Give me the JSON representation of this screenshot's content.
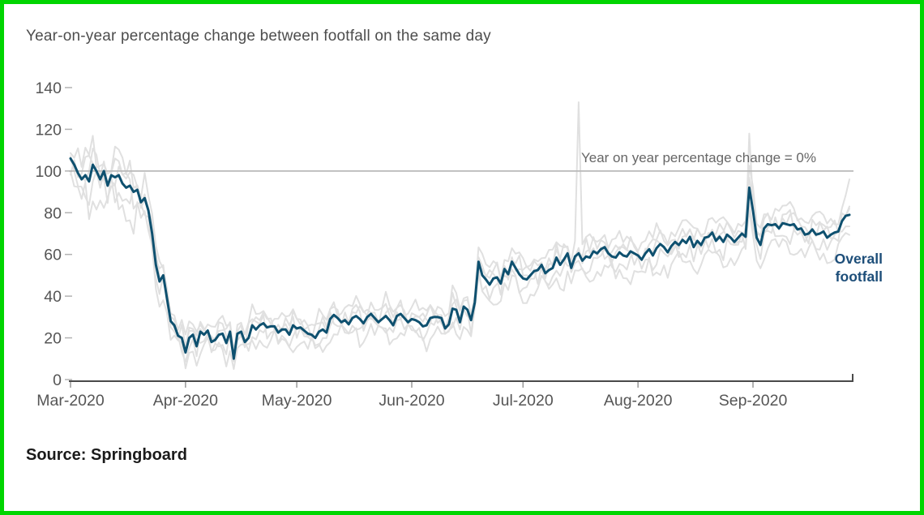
{
  "title": "Year-on-year percentage change between footfall on the same day",
  "source": "Source: Springboard",
  "colors": {
    "line_blue": "#0e506f",
    "label_blue": "#1d4e79",
    "background_grey": "#e0e0e0",
    "reference_grey": "#b9b9b9",
    "axis_grey": "#4a4a4a",
    "tick_grey": "#999999",
    "text_grey": "#555555",
    "source_dark": "#1a1a1a",
    "border_green": "#00d500"
  },
  "chart_data": {
    "type": "line",
    "title": "Year-on-year percentage change between footfall on the same day",
    "x_start_date": "2020-03-01",
    "x_tick_labels": [
      "Mar-2020",
      "Apr-2020",
      "May-2020",
      "Jun-2020",
      "Jul-2020",
      "Aug-2020",
      "Sep-2020"
    ],
    "x_tick_day_indices": [
      0,
      31,
      61,
      92,
      122,
      153,
      184
    ],
    "x_domain_days": 211,
    "ylim": [
      0,
      140
    ],
    "y_ticks": [
      0,
      20,
      40,
      60,
      80,
      100,
      120,
      140
    ],
    "grid": "off",
    "legend_position": "direct label at right end of line",
    "reference_line": {
      "value": 100,
      "label": "Year on year percentage change = 0%"
    },
    "series": [
      {
        "name": "Overall footfall",
        "color": "#0e506f",
        "label_lines": [
          "Overall",
          "footfall"
        ],
        "values": [
          106,
          103,
          99,
          96,
          98,
          95,
          103,
          100,
          96,
          100,
          93,
          98,
          97,
          98,
          94,
          92,
          93,
          90,
          91,
          85,
          87,
          81,
          70,
          55,
          47,
          50,
          39,
          28,
          26,
          21,
          20,
          13,
          20,
          21.5,
          16,
          23,
          21.5,
          23.5,
          18,
          19,
          21.5,
          22,
          17.5,
          23,
          10,
          22,
          23,
          18,
          20,
          26,
          24,
          26,
          27,
          25,
          25.5,
          25.5,
          22.5,
          24,
          24,
          21.5,
          26,
          24.5,
          25,
          23.5,
          22,
          21.5,
          20,
          23,
          24,
          22.5,
          29,
          31,
          29.5,
          27.5,
          28.5,
          26.5,
          29.5,
          30.5,
          29,
          27,
          30,
          31.5,
          29.5,
          27.5,
          29,
          30.5,
          28.5,
          26,
          30.5,
          31.5,
          29.5,
          27.5,
          29,
          28.5,
          27.5,
          25.5,
          26,
          29.5,
          30,
          30,
          29.5,
          24.5,
          26.5,
          34,
          33.5,
          27.5,
          35,
          33.5,
          28.5,
          37,
          56.5,
          50,
          48,
          45.5,
          48.5,
          49,
          46,
          53,
          50.5,
          56.5,
          53.5,
          50.5,
          48.5,
          48,
          50,
          52,
          52.5,
          55,
          51,
          52.5,
          53.5,
          58.5,
          55,
          57.5,
          60.5,
          53.5,
          59,
          60.5,
          57,
          59,
          58.5,
          61.5,
          60.5,
          62.5,
          63.5,
          60.5,
          59,
          58.5,
          61,
          59.5,
          59,
          61.5,
          60.5,
          59.5,
          57.5,
          60.5,
          62.5,
          59.5,
          63,
          65,
          63.5,
          61,
          64,
          66,
          64.5,
          67,
          65.5,
          68.5,
          63.5,
          66.5,
          64.5,
          68,
          68.5,
          70.5,
          66.5,
          68.5,
          66,
          69.5,
          68,
          66,
          68,
          70,
          68.5,
          92,
          81,
          68,
          64.5,
          72.5,
          74.5,
          74,
          74.5,
          72.5,
          75,
          74.5,
          74,
          74.5,
          72,
          72.5,
          69.5,
          70,
          72,
          69.5,
          70,
          71,
          68,
          69.5,
          70.5,
          71,
          76,
          78.5,
          79
        ]
      }
    ],
    "background_series_estimated": {
      "color": "#e0e0e0",
      "note": "unlabelled light grey comparison lines (values estimated)",
      "params": [
        {
          "mul": 1.03,
          "off": 5,
          "amp": 5,
          "seed": 1,
          "spikes": [
            [
              137,
              133
            ],
            [
              210,
              96
            ]
          ]
        },
        {
          "mul": 1.0,
          "off": 2.5,
          "amp": 4.5,
          "seed": 2,
          "spikes": [
            [
              183,
              118
            ]
          ]
        },
        {
          "mul": 0.97,
          "off": -2,
          "amp": 5,
          "seed": 3,
          "spikes": []
        },
        {
          "mul": 0.93,
          "off": -5,
          "amp": 6,
          "seed": 4,
          "spikes": [
            [
              44,
              5
            ]
          ]
        },
        {
          "mul": 1.01,
          "off": 0.5,
          "amp": 7,
          "seed": 5,
          "spikes": []
        }
      ]
    }
  }
}
